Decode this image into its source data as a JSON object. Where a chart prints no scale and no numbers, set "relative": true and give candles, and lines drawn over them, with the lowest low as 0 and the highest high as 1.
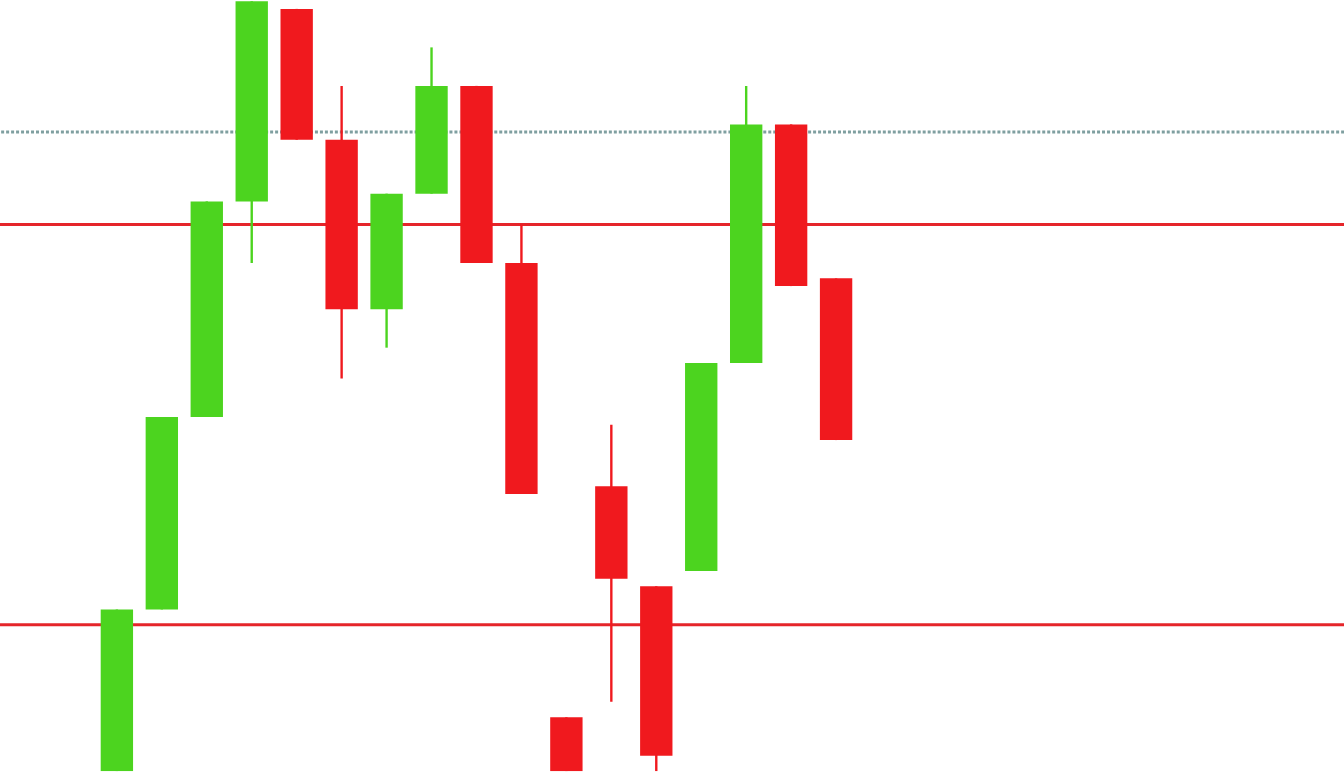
{
  "chart_data": {
    "type": "candlestick",
    "relative": true,
    "categories": [
      null,
      null,
      null,
      null,
      null,
      null,
      null,
      null,
      null,
      null,
      null,
      null,
      null,
      null,
      null,
      null,
      null
    ],
    "ohlc": [
      [
        0,
        0.21,
        0,
        0.21
      ],
      [
        0.21,
        0.46,
        0.21,
        0.46
      ],
      [
        0.46,
        0.74,
        0.46,
        0.74
      ],
      [
        0.74,
        1,
        0.66,
        1
      ],
      [
        0.99,
        0.99,
        0.82,
        0.82
      ],
      [
        0.82,
        0.89,
        0.51,
        0.6
      ],
      [
        0.6,
        0.75,
        0.55,
        0.75
      ],
      [
        0.75,
        0.94,
        0.75,
        0.89
      ],
      [
        0.89,
        0.89,
        0.66,
        0.66
      ],
      [
        0.66,
        0.71,
        0.36,
        0.36
      ],
      [
        0.07,
        0.07,
        0,
        0
      ],
      [
        0.37,
        0.45,
        0.09,
        0.25
      ],
      [
        0.24,
        0.24,
        0,
        0.02
      ],
      [
        0.26,
        0.53,
        0.26,
        0.53
      ],
      [
        0.53,
        0.89,
        0.53,
        0.84
      ],
      [
        0.84,
        0.84,
        0.63,
        0.63
      ],
      [
        0.64,
        0.64,
        0.43,
        0.43
      ]
    ],
    "colors": [
      "#4cd41f",
      "#4cd41f",
      "#4cd41f",
      "#4cd41f",
      "#f0191e",
      "#f0191e",
      "#4cd41f",
      "#4cd41f",
      "#f0191e",
      "#f0191e",
      "#f0191e",
      "#f0191e",
      "#f0191e",
      "#4cd41f",
      "#4cd41f",
      "#f0191e",
      "#f0191e"
    ],
    "ref_lines": [
      {
        "axis": "y",
        "value": 0.83,
        "color": "#7f9fa0",
        "line_style": "dotted"
      },
      {
        "axis": "y",
        "value": 0.71,
        "color": "#e5252a",
        "line_style": "solid"
      },
      {
        "axis": "y",
        "value": 0.19,
        "color": "#e5252a",
        "line_style": "solid"
      }
    ]
  }
}
